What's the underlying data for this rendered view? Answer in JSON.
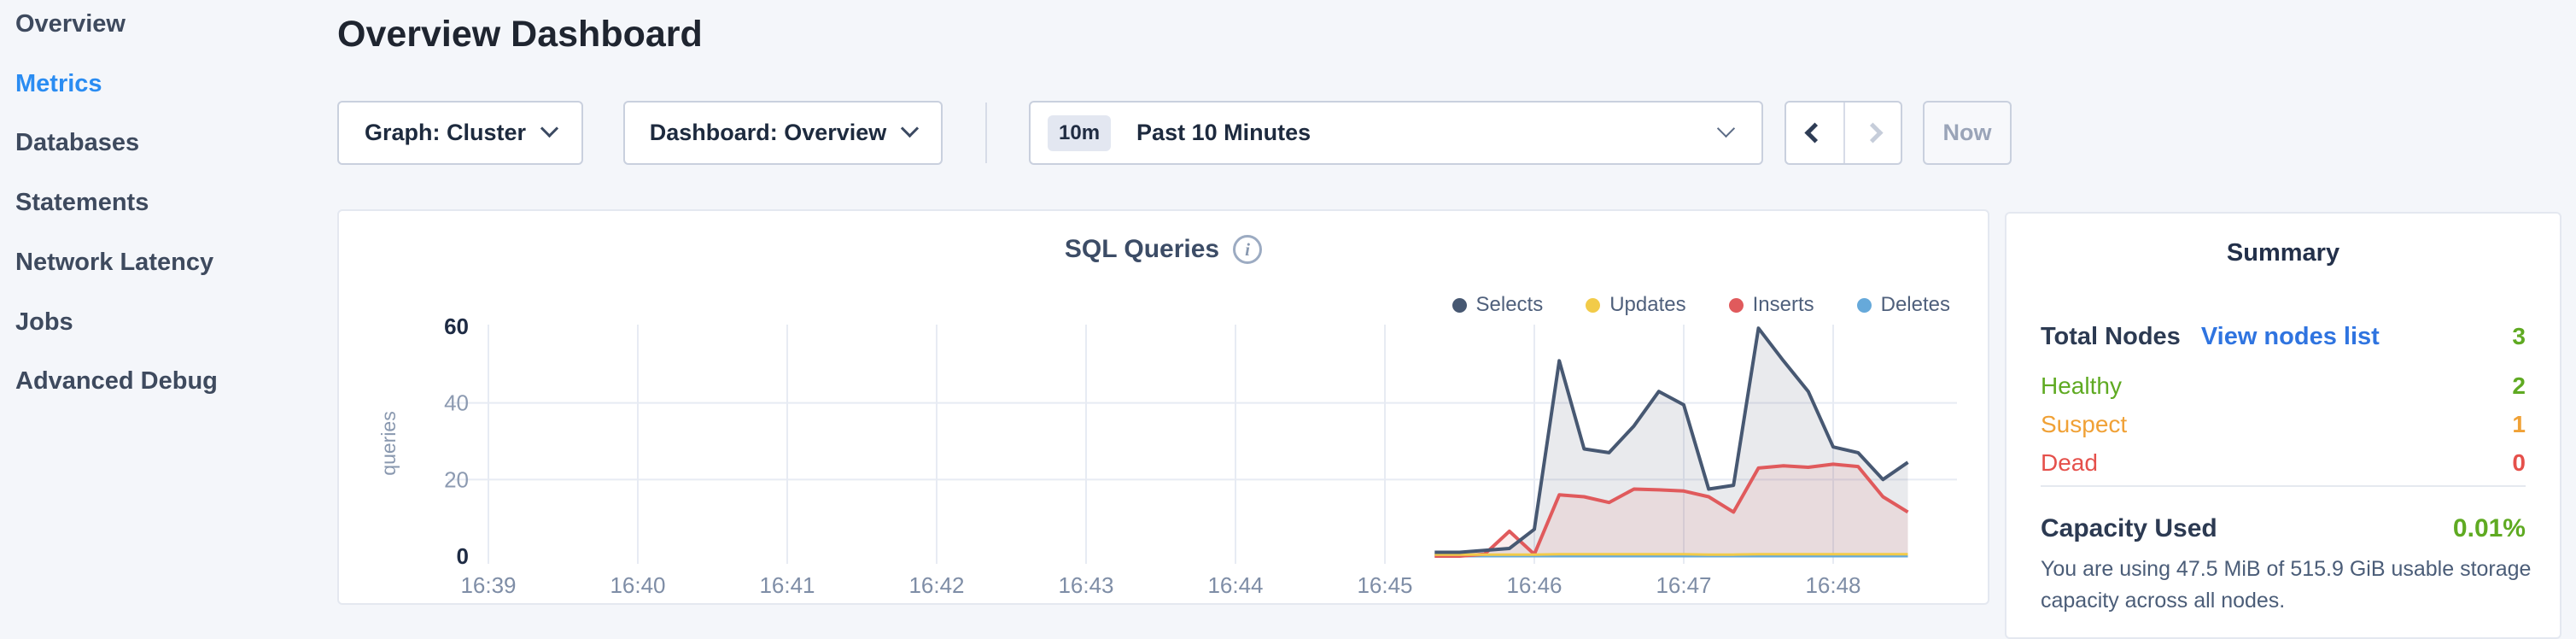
{
  "sidebar": {
    "items": [
      {
        "label": "Overview",
        "active": false
      },
      {
        "label": "Metrics",
        "active": true
      },
      {
        "label": "Databases",
        "active": false
      },
      {
        "label": "Statements",
        "active": false
      },
      {
        "label": "Network Latency",
        "active": false
      },
      {
        "label": "Jobs",
        "active": false
      },
      {
        "label": "Advanced Debug",
        "active": false
      }
    ]
  },
  "header": {
    "title": "Overview Dashboard"
  },
  "toolbar": {
    "graph_dropdown": "Graph: Cluster",
    "dashboard_dropdown": "Dashboard: Overview",
    "time_badge": "10m",
    "time_label": "Past 10 Minutes",
    "now_label": "Now"
  },
  "colors": {
    "nav_active": "#2a8cf2",
    "link": "#2f74e0",
    "healthy_green": "#5faa22",
    "suspect_orange": "#f0a136",
    "dead_red": "#e5504b"
  },
  "chart_data": {
    "type": "area",
    "title": "SQL Queries",
    "ylabel": "queries",
    "ylim": [
      0,
      60
    ],
    "y_ticks": [
      0,
      20,
      40,
      60
    ],
    "grid": true,
    "legend_position": "top-right",
    "x_ticks": [
      "16:39",
      "16:40",
      "16:41",
      "16:42",
      "16:43",
      "16:44",
      "16:45",
      "16:46",
      "16:47",
      "16:48"
    ],
    "x_seconds_after_first_tick": [
      380,
      390,
      400,
      410,
      420,
      430,
      440,
      450,
      460,
      470,
      480,
      490,
      500,
      510,
      520,
      530,
      540,
      550,
      560,
      570
    ],
    "series": [
      {
        "name": "Selects",
        "color": "#475872",
        "fill": "rgba(71,86,111,0.12)",
        "values": [
          1,
          1,
          1.5,
          2,
          7,
          51,
          28,
          27,
          34,
          43,
          39.5,
          17.5,
          18.5,
          59.5,
          51,
          43,
          28.5,
          27,
          20,
          24.5
        ]
      },
      {
        "name": "Updates",
        "color": "#f2cb49",
        "fill": "none",
        "values": [
          0.4,
          0.4,
          0.4,
          0.4,
          0.4,
          0.5,
          0.5,
          0.5,
          0.5,
          0.5,
          0.5,
          0.4,
          0.4,
          0.5,
          0.5,
          0.5,
          0.5,
          0.5,
          0.5,
          0.5
        ]
      },
      {
        "name": "Inserts",
        "color": "#e05a5c",
        "fill": "rgba(224,90,92,0.10)",
        "values": [
          0,
          0,
          0.5,
          6.5,
          0.5,
          16,
          15.5,
          14,
          17.5,
          17.3,
          17,
          15.5,
          11.5,
          23,
          23.6,
          23.2,
          24,
          23.4,
          15.5,
          11.5
        ]
      },
      {
        "name": "Deletes",
        "color": "#66a9da",
        "fill": "none",
        "values": [
          0,
          0,
          0,
          0,
          0,
          0,
          0,
          0,
          0,
          0,
          0,
          0,
          0,
          0,
          0,
          0,
          0,
          0,
          0,
          0
        ]
      }
    ]
  },
  "summary": {
    "title": "Summary",
    "total_nodes_label": "Total Nodes",
    "view_nodes_link": "View nodes list",
    "total_nodes_value": "3",
    "node_rows": [
      {
        "label": "Healthy",
        "value": "2",
        "color": "#5faa22"
      },
      {
        "label": "Suspect",
        "value": "1",
        "color": "#f0a136"
      },
      {
        "label": "Dead",
        "value": "0",
        "color": "#e5504b"
      }
    ],
    "capacity_label": "Capacity Used",
    "capacity_value": "0.01%",
    "capacity_caption": "You are using 47.5 MiB of 515.9 GiB usable storage capacity across all nodes."
  }
}
